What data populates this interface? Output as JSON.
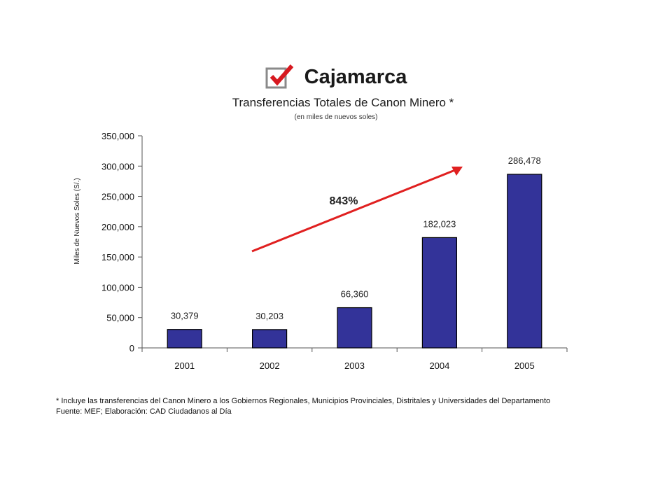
{
  "header": {
    "title": "Cajamarca",
    "subtitle": "Transferencias Totales de Canon Minero *",
    "units_note": "(en miles de nuevos soles)"
  },
  "colors": {
    "bar": "#333399",
    "arrow": "#e02020",
    "check": "#d71920"
  },
  "icons": {
    "title_icon": "checkbox-checked-icon"
  },
  "chart_data": {
    "type": "bar",
    "categories": [
      "2001",
      "2002",
      "2003",
      "2004",
      "2005"
    ],
    "values": [
      30379,
      30203,
      66360,
      182023,
      286478
    ],
    "value_labels": [
      "30,379",
      "30,203",
      "66,360",
      "182,023",
      "286,478"
    ],
    "title": "Transferencias Totales de Canon Minero *",
    "xlabel": "",
    "ylabel": "Miles de Nuevos Soles (S/.)",
    "ylim": [
      0,
      350000
    ],
    "yticks": [
      "0",
      "50,000",
      "100,000",
      "150,000",
      "200,000",
      "250,000",
      "300,000",
      "350,000"
    ],
    "grid": false,
    "legend": "none",
    "annotation": {
      "text": "843%",
      "kind": "growth-arrow"
    }
  },
  "footnotes": {
    "note": "* Incluye las transferencias del Canon Minero a los Gobiernos Regionales, Municipios Provinciales, Distritales y Universidades del Departamento",
    "source": "Fuente: MEF; Elaboración: CAD Ciudadanos al Día"
  }
}
